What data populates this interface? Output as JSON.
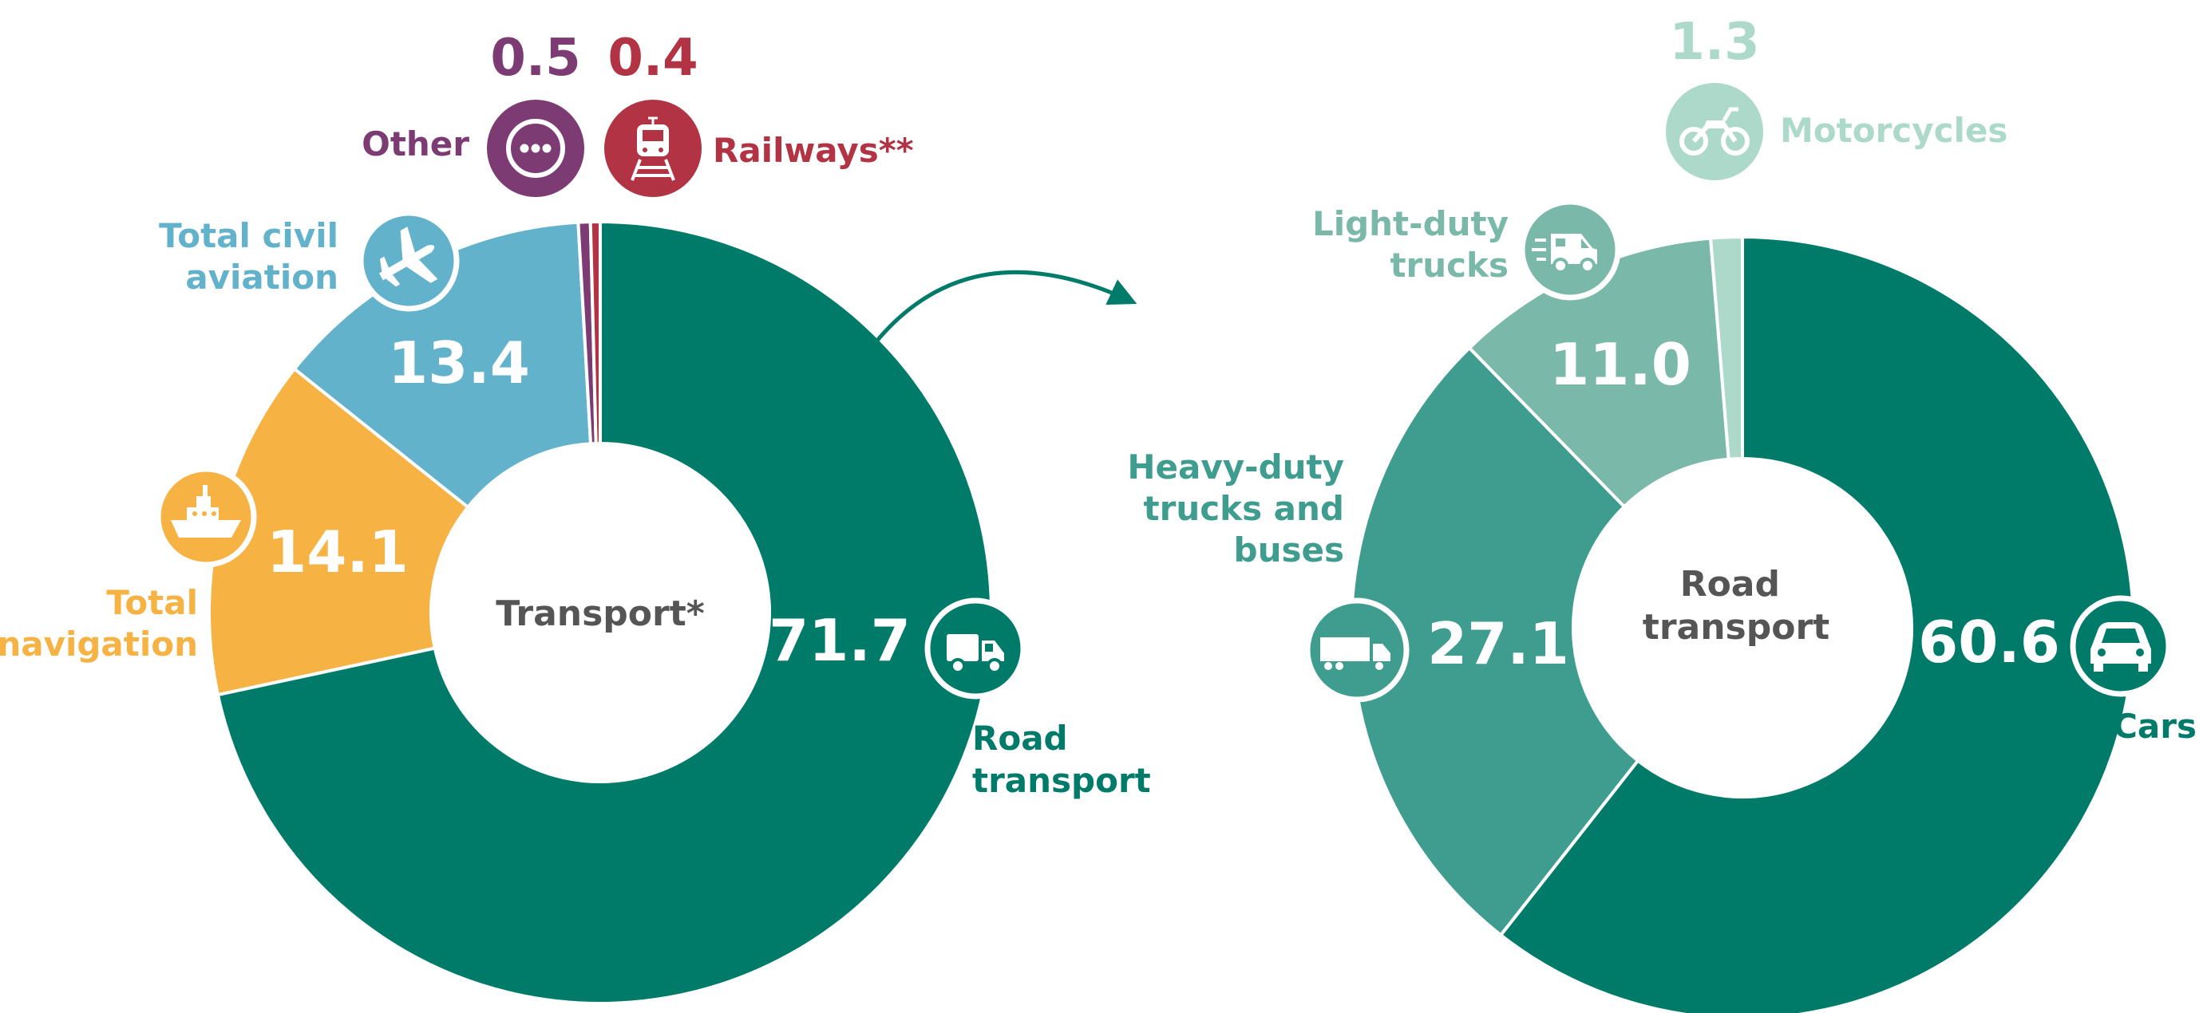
{
  "colors": {
    "road_transport": "#007B6A",
    "total_navigation": "#F7B244",
    "total_civil_aviation": "#62B2CC",
    "other": "#7D3B74",
    "railways": "#B23344",
    "cars": "#007B6A",
    "heavy_duty": "#3E9D8F",
    "light_duty": "#7AB9AA",
    "motorcycles": "#ADD9CA"
  },
  "chart_data": [
    {
      "type": "pie",
      "center_label": "Transport*",
      "unit": "%",
      "slices": [
        {
          "key": "road_transport",
          "label": "Road transport",
          "value": 71.7,
          "value_label": "71.7",
          "color": "#007B6A",
          "icon": "truck-icon"
        },
        {
          "key": "total_navigation",
          "label": "Total navigation",
          "value": 14.1,
          "value_label": "14.1",
          "color": "#F7B244",
          "icon": "ship-icon"
        },
        {
          "key": "total_civil_aviation",
          "label": "Total civil aviation",
          "value": 13.4,
          "value_label": "13.4",
          "color": "#62B2CC",
          "icon": "airplane-icon"
        },
        {
          "key": "other",
          "label": "Other",
          "value": 0.5,
          "value_label": "0.5",
          "color": "#7D3B74",
          "icon": "ellipsis-icon"
        },
        {
          "key": "railways",
          "label": "Railways**",
          "value": 0.4,
          "value_label": "0.4",
          "color": "#B23344",
          "icon": "train-icon"
        }
      ]
    },
    {
      "type": "pie",
      "center_label": "Road transport",
      "unit": "%",
      "slices": [
        {
          "key": "cars",
          "label": "Cars",
          "value": 60.6,
          "value_label": "60.6",
          "color": "#007B6A",
          "icon": "car-icon"
        },
        {
          "key": "heavy_duty",
          "label": "Heavy-duty trucks and buses",
          "value": 27.1,
          "value_label": "27.1",
          "color": "#3E9D8F",
          "icon": "semi-truck-icon"
        },
        {
          "key": "light_duty",
          "label": "Light-duty trucks",
          "value": 11.0,
          "value_label": "11.0",
          "color": "#7AB9AA",
          "icon": "van-icon"
        },
        {
          "key": "motorcycles",
          "label": "Motorcycles",
          "value": 1.3,
          "value_label": "1.3",
          "color": "#ADD9CA",
          "icon": "motorcycle-icon"
        }
      ]
    }
  ]
}
